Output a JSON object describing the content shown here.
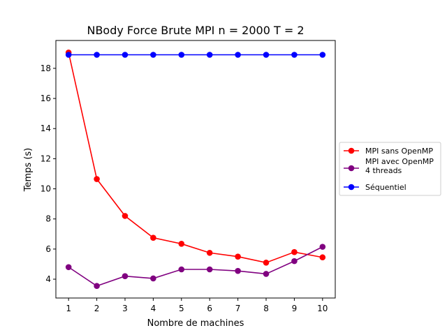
{
  "chart_data": {
    "type": "line",
    "title": "NBody Force Brute MPI n = 2000 T = 2",
    "xlabel": "Nombre de machines",
    "ylabel": "Temps (s)",
    "x": [
      1,
      2,
      3,
      4,
      5,
      6,
      7,
      8,
      9,
      10
    ],
    "xlim": [
      0.55,
      10.45
    ],
    "ylim": [
      2.75,
      19.85
    ],
    "xticks": [
      1,
      2,
      3,
      4,
      5,
      6,
      7,
      8,
      9,
      10
    ],
    "yticks": [
      4,
      6,
      8,
      10,
      12,
      14,
      16,
      18
    ],
    "grid": false,
    "legend_position": "center-right, outside plot",
    "series": [
      {
        "name": "MPI sans OpenMP",
        "color": "#ff0000",
        "values": [
          19.05,
          10.65,
          8.2,
          6.75,
          6.35,
          5.75,
          5.5,
          5.1,
          5.8,
          5.45
        ]
      },
      {
        "name": "MPI avec OpenMP\n4 threads",
        "name_lines": [
          "MPI avec OpenMP",
          "4 threads"
        ],
        "color": "#800080",
        "values": [
          4.8,
          3.55,
          4.2,
          4.05,
          4.65,
          4.65,
          4.55,
          4.35,
          5.2,
          6.15
        ]
      },
      {
        "name": "Séquentiel",
        "color": "#0000ff",
        "values": [
          18.9,
          18.9,
          18.9,
          18.9,
          18.9,
          18.9,
          18.9,
          18.9,
          18.9,
          18.9
        ]
      }
    ]
  }
}
